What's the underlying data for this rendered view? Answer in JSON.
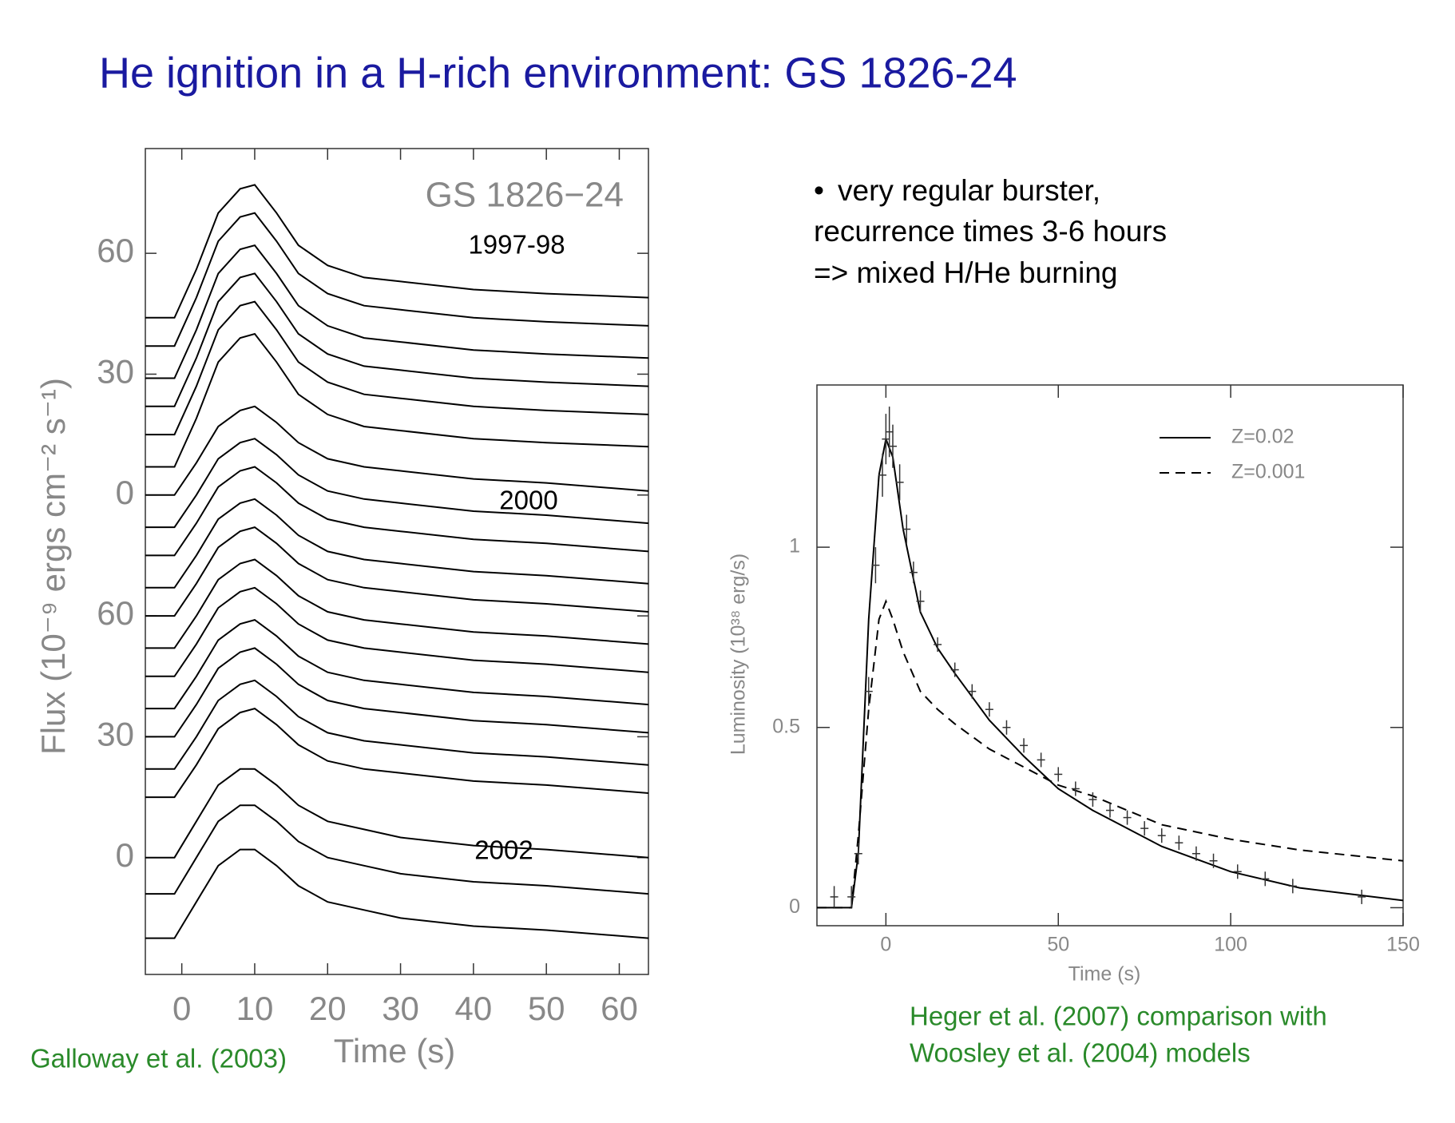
{
  "title": "He ignition in a H-rich environment: GS 1826-24",
  "bullets": [
    "very regular burster,",
    "recurrence times 3-6 hours",
    "=>  mixed H/He burning"
  ],
  "captions": {
    "left": "Galloway et al. (2003)",
    "right": [
      "Heger et al. (2007) comparison with",
      "Woosley et al. (2004) models"
    ]
  },
  "chart_data": [
    {
      "type": "line",
      "x_label": "Time (s)",
      "y_label": "Flux (10⁻⁹ ergs cm⁻² s⁻¹)",
      "annotations": [
        "GS 1826−24",
        "1997-98",
        "2000",
        "2002"
      ],
      "xlim": [
        -5,
        64
      ],
      "xticks": [
        0,
        10,
        20,
        30,
        40,
        50,
        60
      ],
      "ylim": [
        -29,
        176
      ],
      "yticks": [
        0,
        30,
        60,
        {
          "value": 90,
          "label": "0"
        },
        {
          "value": 120,
          "label": "30"
        },
        {
          "value": 150,
          "label": "60"
        }
      ],
      "color": "#000000",
      "x": [
        -5,
        -1,
        2,
        5,
        8,
        10,
        13,
        16,
        20,
        25,
        30,
        40,
        50,
        64
      ],
      "series": [
        {
          "values": [
            134,
            134,
            146,
            160,
            166,
            167,
            160,
            152,
            147,
            144,
            143,
            141,
            140,
            139
          ]
        },
        {
          "values": [
            127,
            127,
            139,
            153,
            159,
            160,
            153,
            145,
            140,
            137,
            136,
            134,
            133,
            132
          ]
        },
        {
          "values": [
            119,
            119,
            131,
            145,
            151,
            152,
            145,
            137,
            132,
            129,
            128,
            126,
            125,
            124
          ]
        },
        {
          "values": [
            112,
            112,
            124,
            138,
            144,
            145,
            138,
            130,
            125,
            122,
            121,
            119,
            118,
            117
          ]
        },
        {
          "values": [
            105,
            105,
            117,
            131,
            137,
            138,
            131,
            123,
            118,
            115,
            114,
            112,
            111,
            110
          ]
        },
        {
          "values": [
            97,
            97,
            109,
            123,
            129,
            130,
            123,
            115,
            110,
            107,
            106,
            104,
            103,
            102
          ]
        },
        {
          "values": [
            90,
            90,
            98,
            107,
            111,
            112,
            108,
            103,
            99,
            97,
            96,
            94,
            93,
            91
          ]
        },
        {
          "values": [
            82,
            82,
            90,
            99,
            103,
            104,
            100,
            95,
            91,
            89,
            88,
            86,
            85,
            83
          ]
        },
        {
          "values": [
            75,
            75,
            83,
            92,
            96,
            97,
            93,
            88,
            84,
            82,
            81,
            79,
            78,
            76
          ]
        },
        {
          "values": [
            67,
            67,
            75,
            84,
            88,
            89,
            85,
            80,
            76,
            74,
            73,
            71,
            70,
            68
          ]
        },
        {
          "values": [
            60,
            60,
            68,
            77,
            81,
            82,
            78,
            73,
            69,
            67,
            66,
            64,
            63,
            61
          ]
        },
        {
          "values": [
            52,
            52,
            60,
            69,
            73,
            74,
            70,
            65,
            61,
            59,
            58,
            56,
            55,
            53
          ]
        },
        {
          "values": [
            45,
            45,
            53,
            62,
            66,
            67,
            63,
            58,
            54,
            52,
            51,
            49,
            48,
            46
          ]
        },
        {
          "values": [
            37,
            37,
            45,
            54,
            58,
            59,
            55,
            50,
            46,
            44,
            43,
            41,
            40,
            38
          ]
        },
        {
          "values": [
            30,
            30,
            38,
            47,
            51,
            52,
            48,
            43,
            39,
            37,
            36,
            34,
            33,
            31
          ]
        },
        {
          "values": [
            22,
            22,
            30,
            39,
            43,
            44,
            40,
            35,
            31,
            29,
            28,
            26,
            25,
            23
          ]
        },
        {
          "values": [
            15,
            15,
            23,
            32,
            36,
            37,
            33,
            28,
            24,
            22,
            21,
            19,
            18,
            16
          ]
        },
        {
          "values": [
            0,
            0,
            9,
            18,
            22,
            22,
            18,
            13,
            9,
            7,
            5,
            3,
            2,
            0
          ]
        },
        {
          "values": [
            -9,
            -9,
            0,
            9,
            13,
            13,
            9,
            4,
            0,
            -2,
            -4,
            -6,
            -7,
            -9
          ]
        },
        {
          "values": [
            -20,
            -20,
            -11,
            -2,
            2,
            2,
            -2,
            -7,
            -11,
            -13,
            -15,
            -17,
            -18,
            -20
          ]
        }
      ]
    },
    {
      "type": "line",
      "x_label": "Time (s)",
      "y_label": "Luminosity (10³⁸ erg/s)",
      "xlim": [
        -20,
        150
      ],
      "xticks": [
        0,
        50,
        100,
        150
      ],
      "ylim": [
        -0.05,
        1.45
      ],
      "yticks": [
        0,
        0.5,
        1
      ],
      "x": [
        -20,
        -10,
        -8,
        -5,
        -2,
        0,
        2,
        5,
        10,
        15,
        20,
        30,
        40,
        50,
        60,
        80,
        100,
        120,
        150
      ],
      "series": [
        {
          "name": "Z=0.02",
          "color": "#000000",
          "line_style": "solid",
          "values": [
            0,
            0,
            0.15,
            0.8,
            1.2,
            1.3,
            1.25,
            1.05,
            0.82,
            0.72,
            0.65,
            0.52,
            0.42,
            0.33,
            0.27,
            0.17,
            0.1,
            0.055,
            0.02
          ]
        },
        {
          "name": "Z=0.001",
          "color": "#000000",
          "line_style": "dashed",
          "values": [
            0,
            0,
            0.2,
            0.55,
            0.8,
            0.85,
            0.8,
            0.71,
            0.6,
            0.55,
            0.51,
            0.44,
            0.39,
            0.34,
            0.31,
            0.23,
            0.19,
            0.16,
            0.13
          ]
        }
      ],
      "points": {
        "color": "#333333",
        "x": [
          -15,
          -10,
          -8,
          -5,
          -3,
          -1,
          0,
          1,
          2,
          4,
          6,
          8,
          10,
          15,
          20,
          25,
          30,
          35,
          40,
          45,
          50,
          55,
          60,
          65,
          70,
          75,
          80,
          85,
          90,
          95,
          102,
          110,
          118,
          138
        ],
        "values": [
          0.03,
          0.03,
          0.15,
          0.6,
          0.95,
          1.2,
          1.3,
          1.32,
          1.28,
          1.18,
          1.05,
          0.93,
          0.85,
          0.73,
          0.66,
          0.6,
          0.55,
          0.5,
          0.45,
          0.41,
          0.37,
          0.33,
          0.3,
          0.27,
          0.25,
          0.22,
          0.2,
          0.18,
          0.15,
          0.13,
          0.1,
          0.08,
          0.06,
          0.03
        ],
        "errors": [
          0.03,
          0.03,
          0.03,
          0.04,
          0.05,
          0.06,
          0.07,
          0.07,
          0.06,
          0.05,
          0.04,
          0.03,
          0.03,
          0.02,
          0.02,
          0.02,
          0.02,
          0.02,
          0.02,
          0.02,
          0.02,
          0.02,
          0.02,
          0.02,
          0.02,
          0.02,
          0.02,
          0.02,
          0.02,
          0.02,
          0.02,
          0.02,
          0.02,
          0.02
        ]
      }
    }
  ]
}
